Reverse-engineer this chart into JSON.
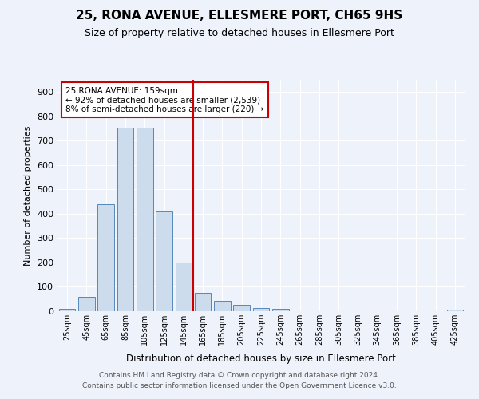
{
  "title": "25, RONA AVENUE, ELLESMERE PORT, CH65 9HS",
  "subtitle": "Size of property relative to detached houses in Ellesmere Port",
  "xlabel": "Distribution of detached houses by size in Ellesmere Port",
  "ylabel": "Number of detached properties",
  "bar_labels": [
    "25sqm",
    "45sqm",
    "65sqm",
    "85sqm",
    "105sqm",
    "125sqm",
    "145sqm",
    "165sqm",
    "185sqm",
    "205sqm",
    "225sqm",
    "245sqm",
    "265sqm",
    "285sqm",
    "305sqm",
    "325sqm",
    "345sqm",
    "365sqm",
    "385sqm",
    "405sqm",
    "425sqm"
  ],
  "bar_values": [
    10,
    58,
    438,
    752,
    752,
    410,
    200,
    75,
    43,
    27,
    12,
    9,
    0,
    0,
    0,
    0,
    0,
    0,
    0,
    0,
    7
  ],
  "bar_color": "#ccdcec",
  "bar_edge_color": "#5588bb",
  "bg_color": "#eef2fa",
  "grid_color": "#ffffff",
  "property_line_x": 7,
  "property_line_color": "#cc0000",
  "annotation_text": "25 RONA AVENUE: 159sqm\n← 92% of detached houses are smaller (2,539)\n8% of semi-detached houses are larger (220) →",
  "annotation_box_color": "#cc0000",
  "ylim": [
    0,
    950
  ],
  "yticks": [
    0,
    100,
    200,
    300,
    400,
    500,
    600,
    700,
    800,
    900
  ],
  "footer_line1": "Contains HM Land Registry data © Crown copyright and database right 2024.",
  "footer_line2": "Contains public sector information licensed under the Open Government Licence v3.0."
}
